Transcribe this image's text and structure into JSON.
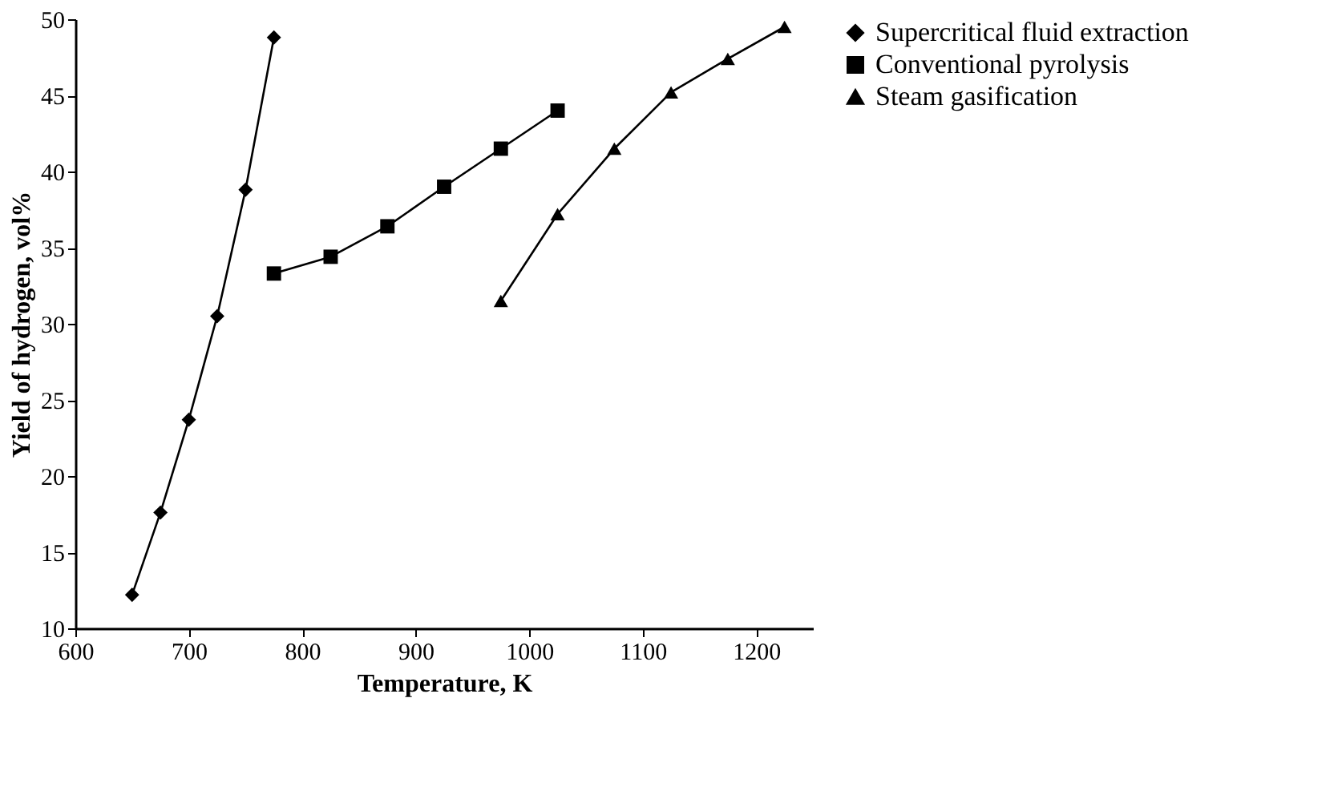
{
  "chart_data": {
    "type": "line",
    "xlabel": "Temperature,  K",
    "ylabel": "Yield  of  hydrogen,  vol%",
    "xlim": [
      600,
      1250
    ],
    "xticks": [
      600,
      700,
      800,
      900,
      1000,
      1100,
      1200
    ],
    "ylim": [
      10,
      50
    ],
    "yticks": [
      10,
      15,
      20,
      25,
      30,
      35,
      40,
      45,
      50
    ],
    "grid": false,
    "legend": "right",
    "line_style": "solid",
    "series": [
      {
        "name": "Supercritical fluid extraction",
        "color": "#000000",
        "marker": "diamond",
        "x": [
          650,
          675,
          700,
          725,
          750,
          775
        ],
        "values": [
          12.2,
          17.6,
          23.7,
          30.5,
          38.8,
          48.8
        ]
      },
      {
        "name": "Conventional pyrolysis",
        "color": "#000000",
        "marker": "square",
        "x": [
          775,
          825,
          875,
          925,
          975,
          1025
        ],
        "values": [
          33.3,
          34.4,
          36.4,
          39.0,
          41.5,
          44.0
        ]
      },
      {
        "name": "Steam gasification",
        "color": "#000000",
        "marker": "triangle",
        "x": [
          975,
          1025,
          1075,
          1125,
          1175,
          1225
        ],
        "values": [
          31.5,
          37.2,
          41.5,
          45.2,
          47.4,
          49.5
        ]
      }
    ]
  }
}
